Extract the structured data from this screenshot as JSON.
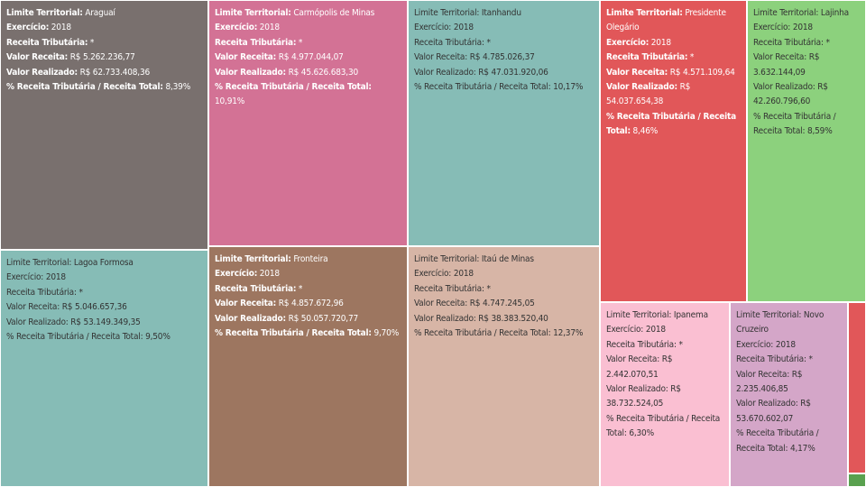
{
  "chart_data": {
    "type": "treemap",
    "labels": {
      "territory": "Limite Territorial:",
      "year": "Exercício:",
      "tax_revenue": "Receita Tributária:",
      "revenue_value": "Valor Receita:",
      "realized_value": "Valor Realizado:",
      "ratio": "% Receita Tributária / Receita Total:"
    },
    "items": [
      {
        "name": "Araguaí",
        "year": "2018",
        "tax_revenue": "*",
        "valor_receita": "R$ 5.262.236,77",
        "valor_realizado": "R$ 62.733.408,36",
        "pct": "8,39%",
        "color": "#79706e",
        "text": "light"
      },
      {
        "name": "Carmópolis de Minas",
        "year": "2018",
        "tax_revenue": "*",
        "valor_receita": "R$ 4.977.044,07",
        "valor_realizado": "R$ 45.626.683,30",
        "pct": "10,91%",
        "color": "#d37295",
        "text": "light"
      },
      {
        "name": "Itanhandu",
        "year": "2018",
        "tax_revenue": "*",
        "valor_receita": "R$ 4.785.026,37",
        "valor_realizado": "R$ 47.031.920,06",
        "pct": "10,17%",
        "color": "#86bcb6",
        "text": "dark"
      },
      {
        "name": "Presidente Olegário",
        "year": "2018",
        "tax_revenue": "*",
        "valor_receita": "R$ 4.571.109,64",
        "valor_realizado": "R$ 54.037.654,38",
        "pct": "8,46%",
        "color": "#e15759",
        "text": "light"
      },
      {
        "name": "Lajinha",
        "year": "2018",
        "tax_revenue": "*",
        "valor_receita": "R$ 3.632.144,09",
        "valor_realizado": "R$ 42.260.796,60",
        "pct": "8,59%",
        "color": "#8cd17d",
        "text": "dark"
      },
      {
        "name": "Lagoa Formosa",
        "year": "2018",
        "tax_revenue": "*",
        "valor_receita": "R$ 5.046.657,36",
        "valor_realizado": "R$ 53.149.349,35",
        "pct": "9,50%",
        "color": "#86bcb6",
        "text": "dark"
      },
      {
        "name": "Fronteira",
        "year": "2018",
        "tax_revenue": "*",
        "valor_receita": "R$ 4.857.672,96",
        "valor_realizado": "R$ 50.057.720,77",
        "pct": "9,70%",
        "color": "#9d7660",
        "text": "light"
      },
      {
        "name": "Itaú de Minas",
        "year": "2018",
        "tax_revenue": "*",
        "valor_receita": "R$ 4.747.245,05",
        "valor_realizado": "R$ 38.383.520,40",
        "pct": "12,37%",
        "color": "#d7b5a6",
        "text": "dark"
      },
      {
        "name": "Ipanema",
        "year": "2018",
        "tax_revenue": "*",
        "valor_receita": "R$ 2.442.070,51",
        "valor_realizado": "R$ 38.732.524,05",
        "pct": "6,30%",
        "color": "#fabfd2",
        "text": "dark"
      },
      {
        "name": "Novo Cruzeiro",
        "year": "2018",
        "tax_revenue": "*",
        "valor_receita": "R$ 2.235.406,85",
        "valor_realizado": "R$ 53.670.602,07",
        "pct": "4,17%",
        "color": "#d4a6c8",
        "text": "dark"
      },
      {
        "name": "",
        "year": "",
        "tax_revenue": "",
        "valor_receita": "",
        "valor_realizado": "",
        "pct": "",
        "color": "#e15759",
        "text": "light"
      },
      {
        "name": "",
        "year": "",
        "tax_revenue": "",
        "valor_receita": "",
        "valor_realizado": "",
        "pct": "",
        "color": "#59a14f",
        "text": "light"
      }
    ]
  }
}
